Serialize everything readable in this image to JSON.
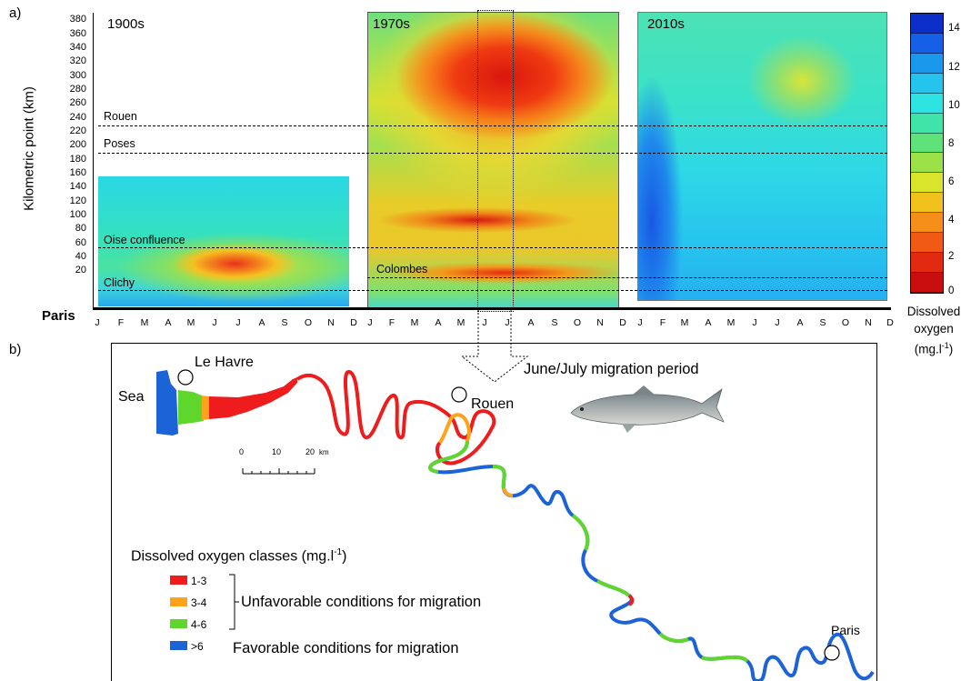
{
  "panel_a": {
    "letter": "a)",
    "ylabel": "Kilometric point (km)",
    "yticks": [
      "380",
      "360",
      "340",
      "320",
      "300",
      "280",
      "260",
      "240",
      "220",
      "200",
      "180",
      "160",
      "140",
      "120",
      "100",
      "80",
      "60",
      "40",
      "20"
    ],
    "origin_label": "Paris",
    "months": [
      "J",
      "F",
      "M",
      "A",
      "M",
      "J",
      "J",
      "A",
      "S",
      "O",
      "N",
      "D"
    ],
    "decades": [
      "1900s",
      "1970s",
      "2010s"
    ],
    "reference_lines": [
      "Rouen",
      "Poses",
      "Oise confluence",
      "Colombes",
      "Clichy"
    ],
    "colorbar": {
      "ticks": [
        "14",
        "12",
        "10",
        "8",
        "6",
        "4",
        "2",
        "0"
      ],
      "title_line1": "Dissolved",
      "title_line2": "oxygen",
      "unit": "(mg.l",
      "unit_sup": "-1",
      "unit_close": ")",
      "colors": [
        "#0b2fc8",
        "#1560e6",
        "#1a98ec",
        "#24c4ec",
        "#2ee4e2",
        "#3fe4a8",
        "#5fe27a",
        "#9ce148",
        "#d9e52b",
        "#f2c21c",
        "#f58f1a",
        "#f05a14",
        "#e22a10",
        "#c80e0e"
      ]
    }
  },
  "panel_b": {
    "letter": "b)",
    "arrow_label": "June/July migration period",
    "places": {
      "le_havre": "Le Havre",
      "sea": "Sea",
      "rouen": "Rouen",
      "paris": "Paris"
    },
    "scale": {
      "t0": "0",
      "t1": "10",
      "t2": "20",
      "unit": "km"
    },
    "legend_title": "Dissolved oxygen classes (mg.l",
    "legend_title_sup": "-1",
    "legend_title_close": ")",
    "classes": [
      {
        "label": "1-3",
        "color": "#ee1c1c"
      },
      {
        "label": "3-4",
        "color": "#ffa31a"
      },
      {
        "label": "4-6",
        "color": "#5fd62c"
      },
      {
        "label": ">6",
        "color": "#1c63d8"
      }
    ],
    "unfavorable_text": "Unfavorable conditions for migration",
    "favorable_text": "Favorable conditions for migration",
    "fish_icon": "salmon-icon"
  }
}
